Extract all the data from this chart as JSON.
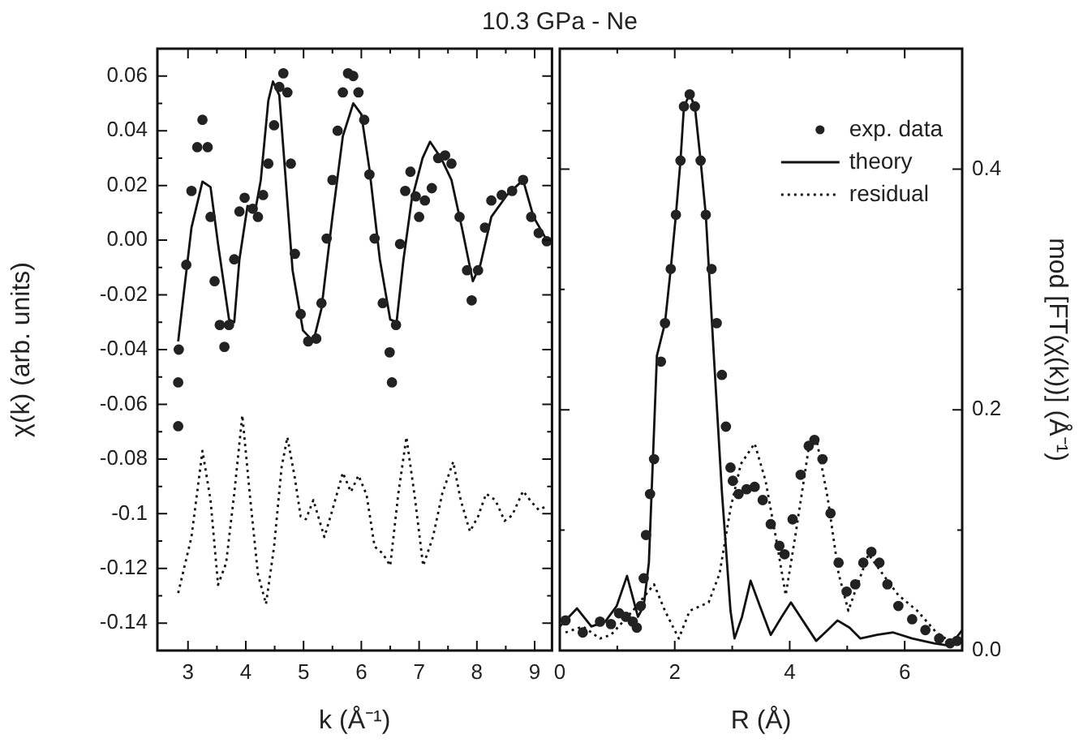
{
  "chart_data": [
    {
      "type": "line",
      "title": "10.3 GPa - Ne",
      "xlabel": "k (Å⁻¹)",
      "ylabel": "χ(k) (arb. units)",
      "xlim": [
        2.47,
        9.3
      ],
      "xticks": [
        3,
        {
          "value": 3.5,
          "label": null
        },
        4,
        {
          "value": 4.5,
          "label": null
        },
        5,
        {
          "value": 5.5,
          "label": null
        },
        6,
        {
          "value": 6.5,
          "label": null
        },
        7,
        {
          "value": 7.5,
          "label": null
        },
        8,
        {
          "value": 8.5,
          "label": null
        },
        9
      ],
      "ylim": [
        -0.15,
        0.07
      ],
      "yticks": [
        -0.14,
        {
          "value": -0.13,
          "label": null
        },
        -0.12,
        {
          "value": -0.11,
          "label": null
        },
        -0.1,
        {
          "value": -0.09,
          "label": null
        },
        -0.08,
        {
          "value": -0.07,
          "label": null
        },
        -0.06,
        {
          "value": -0.05,
          "label": null
        },
        -0.04,
        {
          "value": -0.03,
          "label": null
        },
        -0.02,
        {
          "value": -0.01,
          "label": null
        },
        {
          "value": 0,
          "label": "0.00"
        },
        {
          "value": 0.01,
          "label": null
        },
        0.02,
        {
          "value": 0.03,
          "label": null
        },
        0.04,
        {
          "value": 0.05,
          "label": null
        },
        0.06
      ],
      "series": [
        {
          "type": "scatter",
          "marker": "circle",
          "color": "#222222",
          "x": [
            2.83,
            2.83,
            2.84,
            2.97,
            3.06,
            3.16,
            3.25,
            3.34,
            3.39,
            3.46,
            3.55,
            3.63,
            3.71,
            3.8,
            3.89,
            3.98,
            4.12,
            4.21,
            4.3,
            4.39,
            4.49,
            4.58,
            4.65,
            4.72,
            4.78,
            4.85,
            4.95,
            5.08,
            5.22,
            5.31,
            5.4,
            5.5,
            5.59,
            5.68,
            5.77,
            5.86,
            5.95,
            6.05,
            6.14,
            6.23,
            6.37,
            6.49,
            6.53,
            6.6,
            6.67,
            6.76,
            6.85,
            6.94,
            7.0,
            7.1,
            7.22,
            7.33,
            7.45,
            7.56,
            7.7,
            7.83,
            7.91,
            8.02,
            8.14,
            8.25,
            8.43,
            8.61,
            8.8,
            8.94,
            9.07,
            9.21
          ],
          "values": [
            -0.068,
            -0.052,
            -0.04,
            -0.009,
            0.018,
            0.034,
            0.044,
            0.034,
            0.0085,
            -0.015,
            -0.031,
            -0.039,
            -0.031,
            -0.007,
            0.0105,
            0.0155,
            0.0115,
            0.0085,
            0.0165,
            0.028,
            0.042,
            0.056,
            0.061,
            0.054,
            0.028,
            -0.005,
            -0.027,
            -0.037,
            -0.036,
            -0.023,
            0.0006,
            0.022,
            0.04,
            0.054,
            0.061,
            0.06,
            0.054,
            0.044,
            0.024,
            0.0006,
            -0.023,
            -0.041,
            -0.052,
            -0.031,
            -0.0014,
            0.018,
            0.025,
            0.016,
            0.0085,
            0.0145,
            0.019,
            0.03,
            0.031,
            0.028,
            0.0085,
            -0.011,
            -0.022,
            -0.011,
            0.0046,
            0.0145,
            0.0165,
            0.018,
            0.022,
            0.0085,
            0.0026,
            -0.0004
          ]
        },
        {
          "type": "line",
          "line_style": "solid",
          "color": "#111111",
          "x": [
            2.83,
            3.06,
            3.25,
            3.39,
            3.52,
            3.71,
            3.8,
            3.89,
            4.03,
            4.17,
            4.26,
            4.39,
            4.47,
            4.58,
            4.67,
            4.81,
            4.99,
            5.17,
            5.31,
            5.5,
            5.68,
            5.86,
            6.0,
            6.14,
            6.32,
            6.5,
            6.61,
            6.73,
            6.87,
            7.06,
            7.19,
            7.38,
            7.56,
            7.74,
            7.93,
            8.06,
            8.25,
            8.52,
            8.8,
            8.98,
            9.21
          ],
          "values": [
            -0.037,
            0.0046,
            0.0214,
            0.0194,
            -0.0014,
            -0.029,
            -0.03,
            -0.007,
            0.0125,
            0.0115,
            0.022,
            0.051,
            0.058,
            0.053,
            0.028,
            -0.011,
            -0.033,
            -0.037,
            -0.025,
            0.0085,
            0.038,
            0.05,
            0.046,
            0.026,
            -0.007,
            -0.029,
            -0.03,
            -0.007,
            0.0145,
            0.03,
            0.036,
            0.03,
            0.022,
            0.0046,
            -0.015,
            -0.009,
            0.0085,
            0.0165,
            0.022,
            0.0085,
            0
          ]
        },
        {
          "type": "line",
          "line_style": "dotted",
          "color": "#111111",
          "x": [
            2.83,
            3.06,
            3.25,
            3.39,
            3.52,
            3.66,
            3.8,
            3.94,
            4.07,
            4.21,
            4.35,
            4.49,
            4.62,
            4.72,
            4.85,
            4.95,
            5.04,
            5.17,
            5.36,
            5.5,
            5.68,
            5.82,
            5.95,
            6.09,
            6.23,
            6.37,
            6.5,
            6.64,
            6.78,
            6.92,
            7.07,
            7.24,
            7.4,
            7.59,
            7.72,
            7.88,
            8.02,
            8.16,
            8.32,
            8.48,
            8.61,
            8.8,
            8.94,
            9.07,
            9.17
          ],
          "values": [
            -0.129,
            -0.1085,
            -0.077,
            -0.095,
            -0.126,
            -0.118,
            -0.0927,
            -0.064,
            -0.093,
            -0.122,
            -0.133,
            -0.112,
            -0.083,
            -0.072,
            -0.087,
            -0.101,
            -0.102,
            -0.095,
            -0.1085,
            -0.0986,
            -0.085,
            -0.092,
            -0.086,
            -0.093,
            -0.112,
            -0.1145,
            -0.119,
            -0.0927,
            -0.072,
            -0.093,
            -0.119,
            -0.1085,
            -0.0927,
            -0.081,
            -0.095,
            -0.1065,
            -0.101,
            -0.0927,
            -0.095,
            -0.1026,
            -0.1006,
            -0.0917,
            -0.0956,
            -0.0986,
            -0.0976
          ]
        }
      ]
    },
    {
      "type": "line",
      "xlabel": "R (Å)",
      "y2label": "mod [FT(χ(k))] (Å⁻¹)",
      "legend": "top right",
      "xlim": [
        0,
        7
      ],
      "xticks": [
        0,
        {
          "value": 1,
          "label": null
        },
        2,
        {
          "value": 3,
          "label": null
        },
        4,
        {
          "value": 5,
          "label": null
        },
        6
      ],
      "y2lim": [
        0,
        0.5
      ],
      "y2ticks": [
        {
          "value": 0,
          "label": "0.0"
        },
        {
          "value": 0.1,
          "label": null
        },
        0.2,
        {
          "value": 0.3,
          "label": null
        },
        0.4
      ],
      "series": [
        {
          "name": "exp. data",
          "type": "scatter",
          "marker": "circle",
          "axis": "y2",
          "color": "#222222",
          "x": [
            0.1,
            0.4,
            0.7,
            0.89,
            1.03,
            1.15,
            1.27,
            1.34,
            1.41,
            1.46,
            1.5,
            1.57,
            1.64,
            1.76,
            1.83,
            1.93,
            2.02,
            2.1,
            2.16,
            2.26,
            2.35,
            2.45,
            2.54,
            2.64,
            2.73,
            2.82,
            2.89,
            2.97,
            3.01,
            3.11,
            3.25,
            3.39,
            3.53,
            3.67,
            3.82,
            3.91,
            4.05,
            4.19,
            4.33,
            4.43,
            4.57,
            4.71,
            4.85,
            4.99,
            5.14,
            5.28,
            5.42,
            5.56,
            5.7,
            5.89,
            6.13,
            6.36,
            6.6,
            6.79,
            6.91
          ],
          "values": [
            0.025,
            0.015,
            0.024,
            0.022,
            0.031,
            0.028,
            0.024,
            0.019,
            0.037,
            0.06,
            0.096,
            0.13,
            0.159,
            0.24,
            0.272,
            0.317,
            0.362,
            0.407,
            0.452,
            0.462,
            0.452,
            0.407,
            0.362,
            0.317,
            0.272,
            0.229,
            0.186,
            0.152,
            0.141,
            0.13,
            0.134,
            0.136,
            0.125,
            0.105,
            0.087,
            0.08,
            0.109,
            0.146,
            0.17,
            0.175,
            0.159,
            0.114,
            0.073,
            0.049,
            0.055,
            0.073,
            0.082,
            0.073,
            0.055,
            0.037,
            0.026,
            0.017,
            0.01,
            0.006,
            0.008
          ]
        },
        {
          "name": "theory",
          "type": "line",
          "line_style": "solid",
          "axis": "y2",
          "color": "#111111",
          "x": [
            0,
            0.3,
            0.55,
            0.79,
            0.99,
            1.17,
            1.36,
            1.46,
            1.55,
            1.69,
            1.83,
            1.93,
            2.02,
            2.1,
            2.16,
            2.26,
            2.35,
            2.45,
            2.54,
            2.68,
            2.82,
            2.97,
            3.04,
            3.17,
            3.32,
            3.48,
            3.67,
            3.86,
            4.02,
            4.24,
            4.46,
            4.66,
            4.83,
            5.04,
            5.23,
            5.52,
            5.8,
            6.13,
            6.51,
            6.79,
            7.0
          ],
          "values": [
            0.02,
            0.035,
            0.02,
            0.024,
            0.037,
            0.062,
            0.028,
            0.037,
            0.073,
            0.245,
            0.272,
            0.317,
            0.362,
            0.407,
            0.452,
            0.462,
            0.452,
            0.407,
            0.362,
            0.245,
            0.132,
            0.033,
            0.01,
            0.028,
            0.058,
            0.037,
            0.013,
            0.028,
            0.04,
            0.024,
            0.008,
            0.017,
            0.025,
            0.019,
            0.01,
            0.013,
            0.015,
            0.01,
            0.006,
            0.004,
            0.017
          ]
        },
        {
          "name": "residual",
          "type": "line",
          "line_style": "dotted",
          "axis": "y2",
          "color": "#111111",
          "x": [
            0.1,
            0.4,
            0.7,
            0.89,
            1.27,
            1.64,
            1.83,
            2.07,
            2.26,
            2.59,
            2.78,
            2.97,
            3.15,
            3.39,
            3.58,
            3.77,
            3.93,
            4.1,
            4.33,
            4.48,
            4.66,
            4.85,
            5.02,
            5.18,
            5.37,
            5.61,
            5.89,
            6.22,
            6.55,
            6.84,
            6.98
          ],
          "values": [
            0.015,
            0.02,
            0.01,
            0.013,
            0.033,
            0.055,
            0.033,
            0.01,
            0.033,
            0.04,
            0.064,
            0.118,
            0.155,
            0.172,
            0.141,
            0.091,
            0.046,
            0.096,
            0.168,
            0.172,
            0.127,
            0.064,
            0.033,
            0.055,
            0.08,
            0.064,
            0.046,
            0.033,
            0.015,
            0.006,
            0.01
          ]
        }
      ]
    }
  ]
}
